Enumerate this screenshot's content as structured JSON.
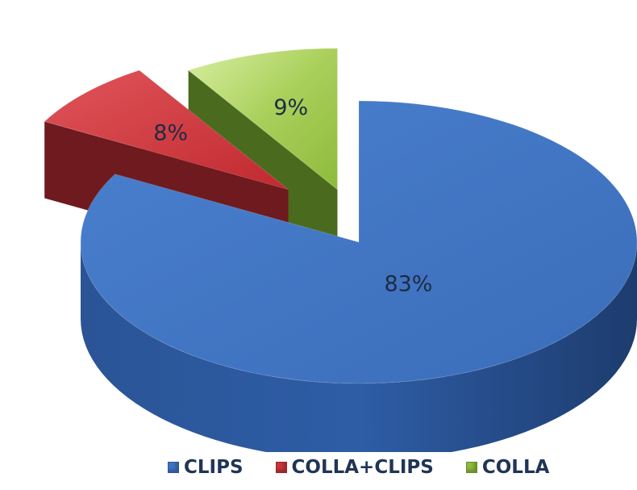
{
  "chart_data": {
    "type": "pie",
    "style": "3d-exploded",
    "legend_position": "bottom",
    "slices": [
      {
        "name": "CLIPS",
        "value": 83,
        "label": "83%",
        "color": "#3f74c4"
      },
      {
        "name": "COLLA+CLIPS",
        "value": 8,
        "label": "8%",
        "color": "#c8353a"
      },
      {
        "name": "COLLA",
        "value": 9,
        "label": "9%",
        "color": "#8dbb3c"
      }
    ]
  }
}
